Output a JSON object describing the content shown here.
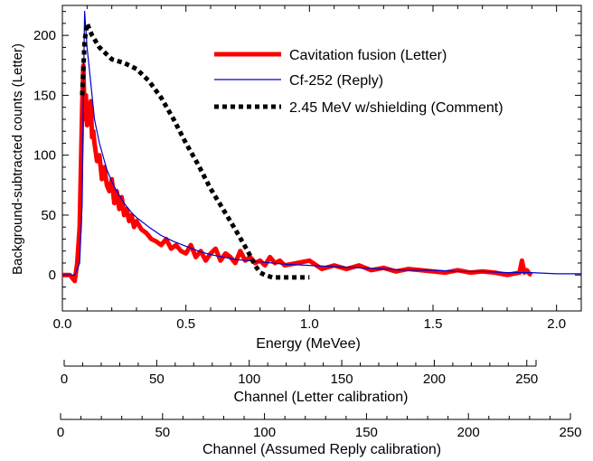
{
  "chart_data": {
    "type": "line",
    "title": "",
    "xlabel": "Energy (MeVee)",
    "ylabel": "Background-subtracted counts (Letter)",
    "xlim": [
      0.0,
      2.1
    ],
    "ylim": [
      -30,
      225
    ],
    "x_ticks": [
      "0.0",
      "0.5",
      "1.0",
      "1.5",
      "2.0"
    ],
    "y_ticks": [
      "0",
      "50",
      "100",
      "150",
      "200"
    ],
    "legend_position": "top-right",
    "series": [
      {
        "name": "Cavitation fusion (Letter)",
        "color": "#ff0000",
        "style": "thick-solid",
        "x": [
          0.0,
          0.03,
          0.05,
          0.06,
          0.07,
          0.075,
          0.08,
          0.085,
          0.09,
          0.095,
          0.1,
          0.105,
          0.11,
          0.115,
          0.12,
          0.125,
          0.13,
          0.14,
          0.15,
          0.16,
          0.17,
          0.18,
          0.19,
          0.2,
          0.21,
          0.22,
          0.23,
          0.24,
          0.25,
          0.26,
          0.27,
          0.28,
          0.29,
          0.3,
          0.32,
          0.34,
          0.36,
          0.38,
          0.4,
          0.42,
          0.44,
          0.46,
          0.48,
          0.5,
          0.52,
          0.54,
          0.56,
          0.58,
          0.6,
          0.62,
          0.64,
          0.66,
          0.68,
          0.7,
          0.72,
          0.74,
          0.76,
          0.78,
          0.8,
          0.82,
          0.84,
          0.86,
          0.88,
          0.9,
          0.95,
          1.0,
          1.05,
          1.1,
          1.15,
          1.2,
          1.25,
          1.3,
          1.35,
          1.4,
          1.45,
          1.5,
          1.55,
          1.6,
          1.65,
          1.7,
          1.75,
          1.8,
          1.85,
          1.86,
          1.87,
          1.88,
          1.89,
          1.9
        ],
        "y": [
          0,
          0,
          -5,
          10,
          40,
          90,
          140,
          175,
          130,
          150,
          125,
          140,
          130,
          145,
          115,
          120,
          110,
          95,
          100,
          80,
          90,
          75,
          70,
          80,
          60,
          70,
          55,
          65,
          50,
          55,
          45,
          50,
          40,
          45,
          38,
          35,
          30,
          28,
          25,
          30,
          22,
          25,
          20,
          18,
          25,
          15,
          20,
          12,
          18,
          22,
          12,
          18,
          15,
          10,
          20,
          12,
          15,
          10,
          12,
          8,
          15,
          10,
          12,
          8,
          10,
          12,
          5,
          8,
          5,
          8,
          4,
          6,
          3,
          5,
          4,
          3,
          2,
          4,
          2,
          3,
          2,
          0,
          2,
          12,
          2,
          4,
          1,
          0
        ]
      },
      {
        "name": "Cf-252 (Reply)",
        "color": "#0000cc",
        "style": "thin-solid",
        "x": [
          0.0,
          0.05,
          0.07,
          0.08,
          0.085,
          0.09,
          0.095,
          0.1,
          0.11,
          0.12,
          0.13,
          0.15,
          0.18,
          0.2,
          0.22,
          0.25,
          0.28,
          0.3,
          0.35,
          0.4,
          0.45,
          0.5,
          0.55,
          0.6,
          0.65,
          0.7,
          0.75,
          0.8,
          0.85,
          0.9,
          1.0,
          1.1,
          1.2,
          1.3,
          1.4,
          1.5,
          1.6,
          1.7,
          1.8,
          1.9,
          2.0,
          2.1
        ],
        "y": [
          0,
          0,
          10,
          60,
          150,
          220,
          205,
          190,
          170,
          150,
          130,
          110,
          88,
          78,
          70,
          60,
          52,
          48,
          40,
          33,
          28,
          24,
          20,
          17,
          15,
          13,
          12,
          11,
          10,
          9,
          8,
          7,
          6,
          5,
          4,
          4,
          3,
          3,
          2,
          2,
          1,
          1
        ]
      },
      {
        "name": "2.45 MeV w/shielding (Comment)",
        "color": "#000000",
        "style": "dotted",
        "x": [
          0.08,
          0.09,
          0.1,
          0.12,
          0.15,
          0.2,
          0.25,
          0.3,
          0.35,
          0.4,
          0.45,
          0.5,
          0.55,
          0.6,
          0.65,
          0.7,
          0.75,
          0.78,
          0.8,
          0.82,
          0.85,
          0.88,
          0.9,
          0.95,
          1.0
        ],
        "y": [
          150,
          195,
          210,
          200,
          190,
          180,
          177,
          172,
          162,
          148,
          130,
          110,
          92,
          72,
          55,
          38,
          20,
          8,
          2,
          0,
          -2,
          -2,
          -2,
          -2,
          -2
        ]
      }
    ],
    "secondary_axes": [
      {
        "label": "Channel (Letter calibration)",
        "range": [
          0,
          255
        ],
        "ticks": [
          "0",
          "50",
          "100",
          "150",
          "200",
          "250"
        ]
      },
      {
        "label": "Channel (Assumed Reply calibration)",
        "range": [
          0,
          250
        ],
        "ticks": [
          "0",
          "50",
          "100",
          "150",
          "200",
          "250"
        ]
      }
    ]
  }
}
